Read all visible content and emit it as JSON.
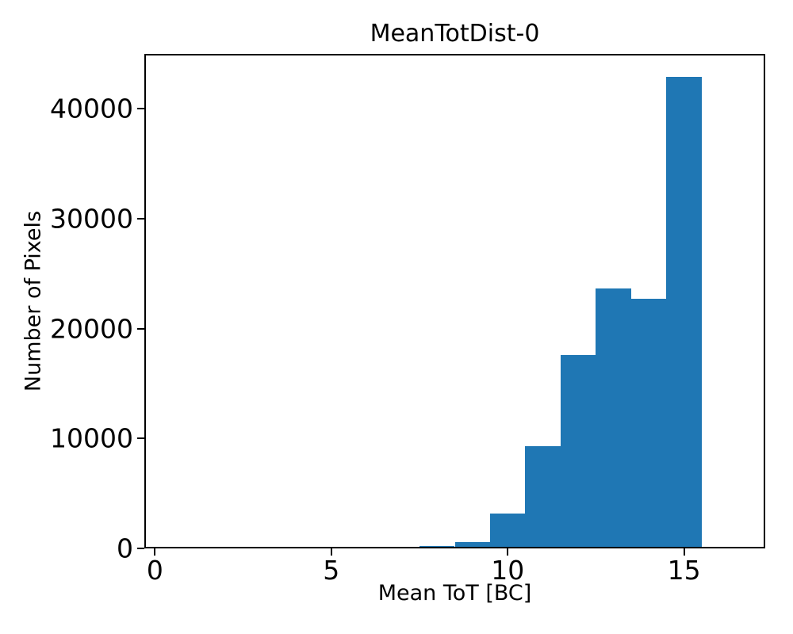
{
  "figure": {
    "background": "#ffffff",
    "text_color": "#000000"
  },
  "chart_data": {
    "type": "bar",
    "title": "MeanTotDist-0",
    "xlabel": "Mean ToT [BC]",
    "ylabel": "Number of Pixels",
    "bar_color": "#1f77b4",
    "axis_color": "#000000",
    "grid": false,
    "legend_position": "none",
    "bin_edges": [
      0.5,
      1.5,
      2.5,
      3.5,
      4.5,
      5.5,
      6.5,
      7.5,
      8.5,
      9.5,
      10.5,
      11.5,
      12.5,
      13.5,
      14.5,
      15.5,
      16.5
    ],
    "bin_centers": [
      1,
      2,
      3,
      4,
      5,
      6,
      7,
      8,
      9,
      10,
      11,
      12,
      13,
      14,
      15,
      16
    ],
    "values": [
      0,
      0,
      0,
      0,
      0,
      0,
      0,
      220,
      580,
      3170,
      9300,
      17600,
      23650,
      22750,
      42880,
      0
    ],
    "xlim": [
      -0.3,
      17.3
    ],
    "ylim": [
      0,
      45000
    ],
    "xticks": [
      0,
      5,
      10,
      15
    ],
    "yticks": [
      0,
      10000,
      20000,
      30000,
      40000
    ]
  }
}
